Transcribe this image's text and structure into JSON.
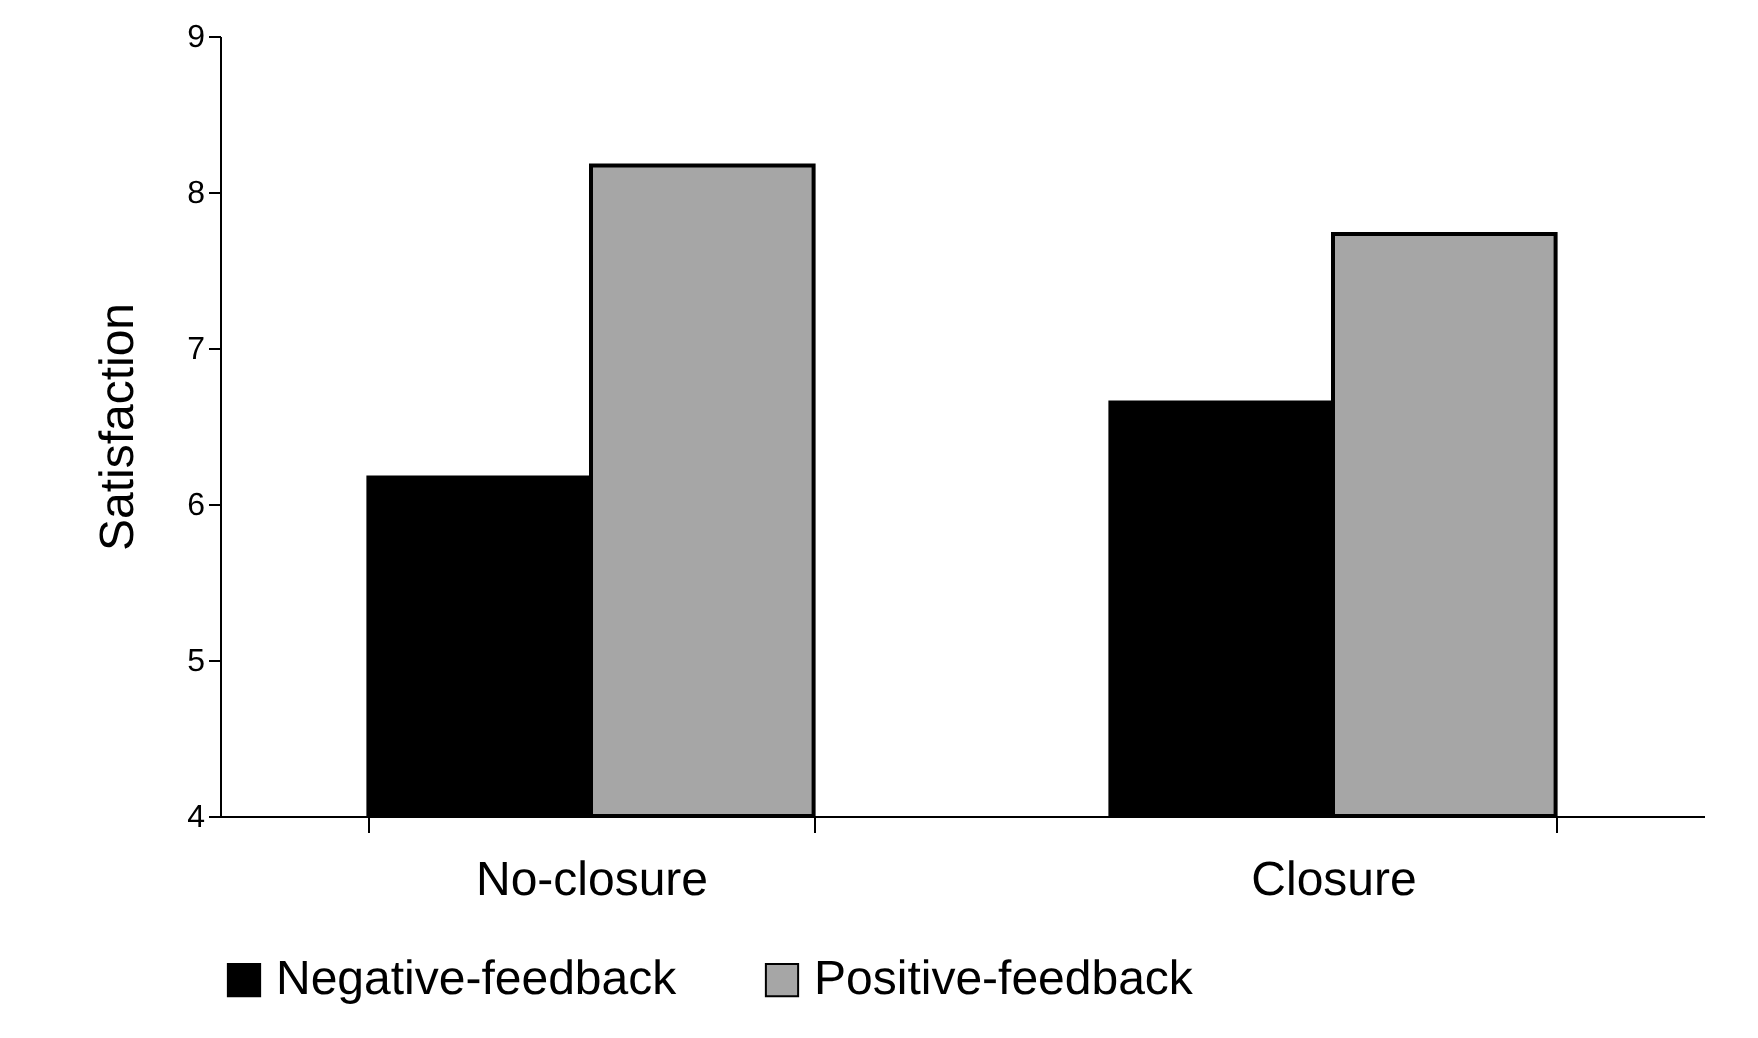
{
  "chart_data": {
    "type": "bar",
    "ylabel": "Satisfaction",
    "categories": [
      "No-closure",
      "Closure"
    ],
    "series": [
      {
        "name": "Negative-feedback",
        "color": "#000000",
        "values": [
          6.17,
          6.65
        ]
      },
      {
        "name": "Positive-feedback",
        "color": "#a6a6a6",
        "values": [
          8.17,
          7.73
        ]
      }
    ],
    "ylim": [
      4,
      9
    ],
    "yticks": [
      4,
      5,
      6,
      7,
      8,
      9
    ],
    "grid": false,
    "legend": "bottom"
  }
}
